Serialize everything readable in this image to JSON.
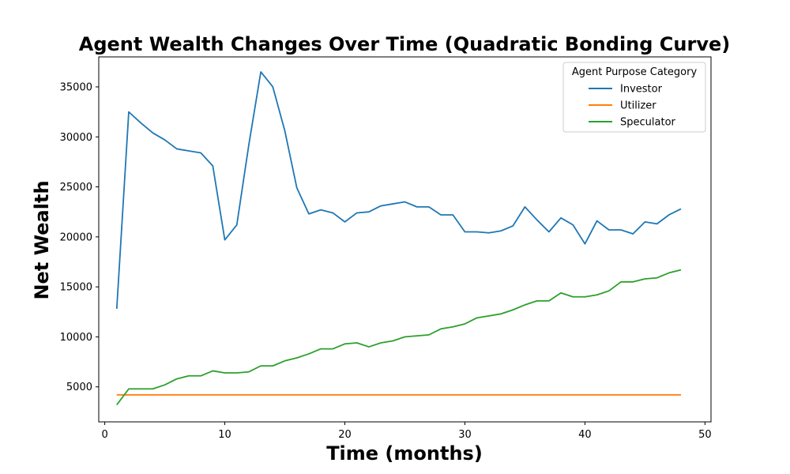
{
  "chart_data": {
    "type": "line",
    "title": "Agent Wealth Changes Over Time (Quadratic Bonding Curve)",
    "xlabel": "Time (months)",
    "ylabel": "Net Wealth",
    "xlim": [
      -0.5,
      50.5
    ],
    "ylim": [
      1500,
      38000
    ],
    "xticks": [
      0,
      10,
      20,
      30,
      40,
      50
    ],
    "yticks": [
      5000,
      10000,
      15000,
      20000,
      25000,
      30000,
      35000
    ],
    "grid": false,
    "legend": {
      "title": "Agent Purpose Category",
      "placement": "top-right"
    },
    "x": [
      1,
      2,
      3,
      4,
      5,
      6,
      7,
      8,
      9,
      10,
      11,
      12,
      13,
      14,
      15,
      16,
      17,
      18,
      19,
      20,
      21,
      22,
      23,
      24,
      25,
      26,
      27,
      28,
      29,
      30,
      31,
      32,
      33,
      34,
      35,
      36,
      37,
      38,
      39,
      40,
      41,
      42,
      43,
      44,
      45,
      46,
      47,
      48
    ],
    "series": [
      {
        "name": "Investor",
        "color": "#1f77b4",
        "values": [
          12800,
          32500,
          31400,
          30400,
          29700,
          28800,
          28600,
          28400,
          27100,
          19700,
          21200,
          29200,
          36500,
          35000,
          30600,
          24900,
          22300,
          22700,
          22400,
          21500,
          22400,
          22500,
          23100,
          23300,
          23500,
          23000,
          23000,
          22200,
          22200,
          20500,
          20500,
          20400,
          20600,
          21100,
          23000,
          21700,
          20500,
          21900,
          21200,
          19300,
          21600,
          20700,
          20700,
          20300,
          21500,
          21300,
          22200,
          22800
        ]
      },
      {
        "name": "Utilizer",
        "color": "#ff7f0e",
        "values": [
          4200,
          4200,
          4200,
          4200,
          4200,
          4200,
          4200,
          4200,
          4200,
          4200,
          4200,
          4200,
          4200,
          4200,
          4200,
          4200,
          4200,
          4200,
          4200,
          4200,
          4200,
          4200,
          4200,
          4200,
          4200,
          4200,
          4200,
          4200,
          4200,
          4200,
          4200,
          4200,
          4200,
          4200,
          4200,
          4200,
          4200,
          4200,
          4200,
          4200,
          4200,
          4200,
          4200,
          4200,
          4200,
          4200,
          4200,
          4200
        ]
      },
      {
        "name": "Speculator",
        "color": "#2ca02c",
        "values": [
          3200,
          4800,
          4800,
          4800,
          5200,
          5800,
          6100,
          6100,
          6600,
          6400,
          6400,
          6500,
          7100,
          7100,
          7600,
          7900,
          8300,
          8800,
          8800,
          9300,
          9400,
          9000,
          9400,
          9600,
          10000,
          10100,
          10200,
          10800,
          11000,
          11300,
          11900,
          12100,
          12300,
          12700,
          13200,
          13600,
          13600,
          14400,
          14000,
          14000,
          14200,
          14600,
          15500,
          15500,
          15800,
          15900,
          16400,
          16700
        ]
      }
    ]
  }
}
